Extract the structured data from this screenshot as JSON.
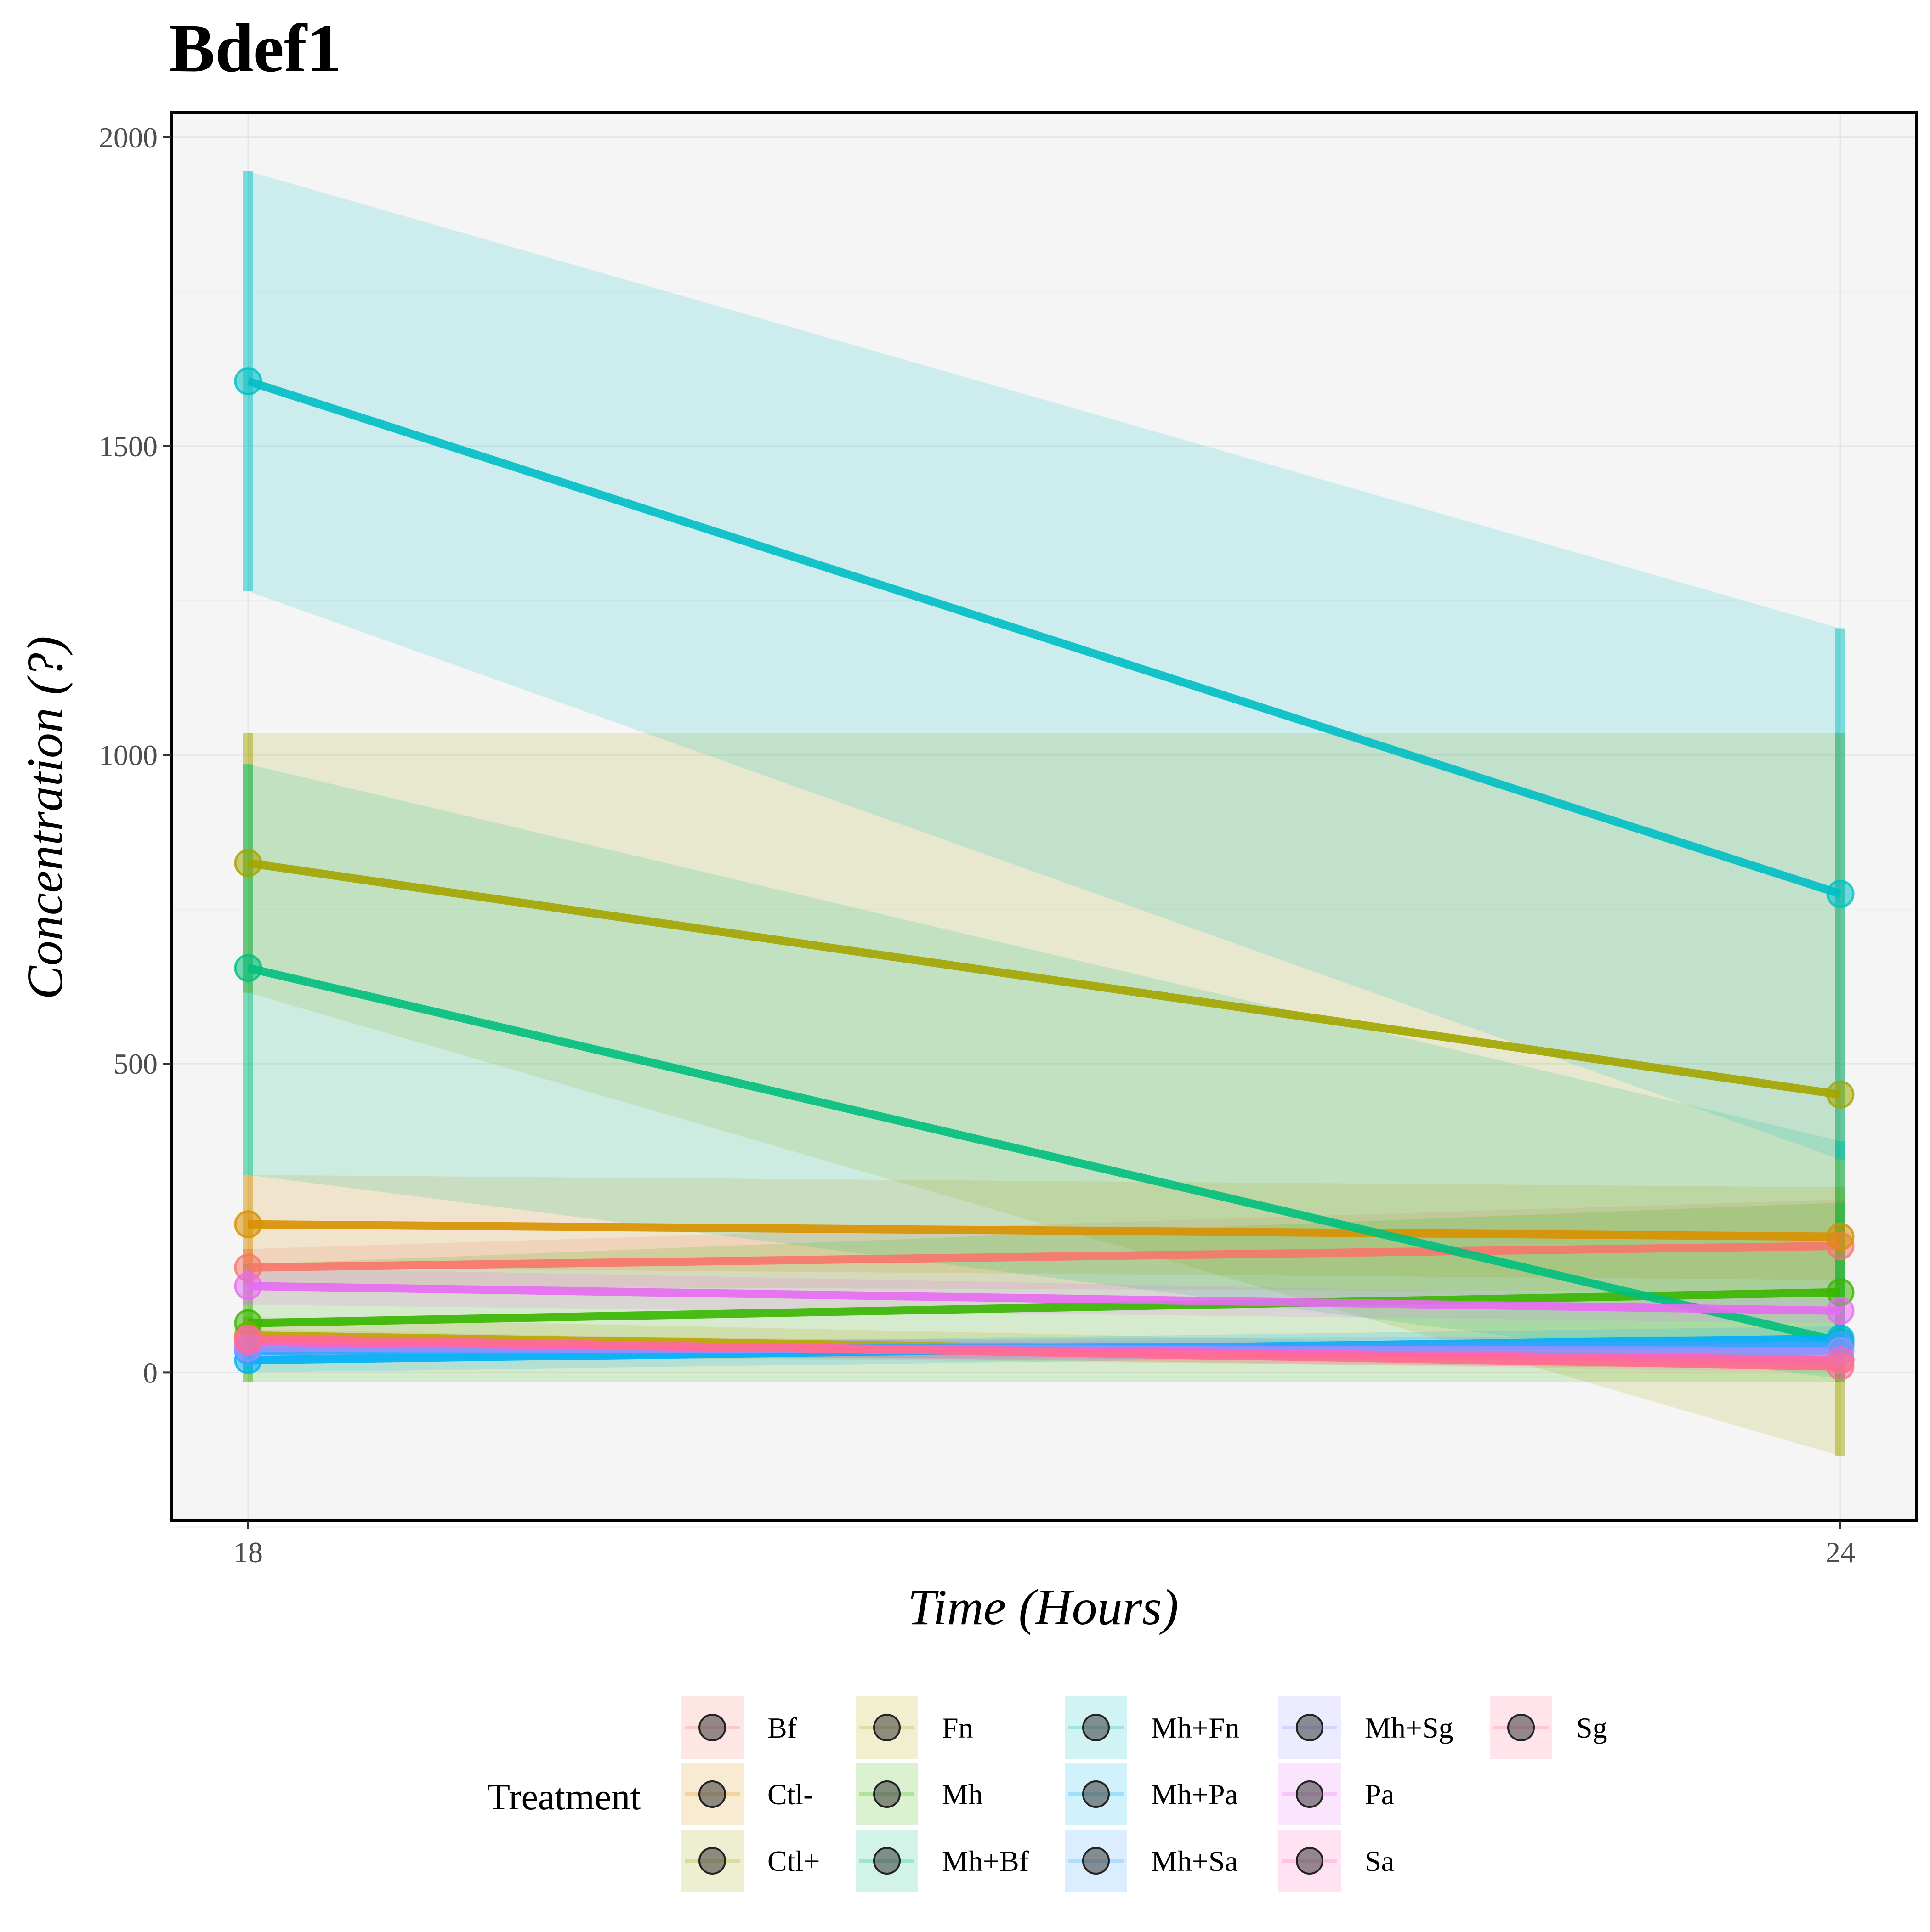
{
  "chart_data": {
    "type": "line",
    "title": "Bdef1",
    "xlabel": "Time (Hours)",
    "ylabel": "Concentration (?)",
    "x": [
      18,
      24
    ],
    "x_ticks": [
      "18",
      "24"
    ],
    "y_ticks": [
      "0",
      "500",
      "1000",
      "1500",
      "2000"
    ],
    "y_tick_values": [
      0,
      500,
      1000,
      1500,
      2000
    ],
    "ylim": [
      -240,
      2040
    ],
    "grid": true,
    "legend": {
      "title": "Treatment",
      "position": "bottom"
    },
    "series": [
      {
        "name": "Bf",
        "color": "#F8766D",
        "values": [
          170,
          205
        ],
        "lower": [
          140,
          130
        ],
        "upper": [
          200,
          280
        ]
      },
      {
        "name": "Ctl-",
        "color": "#D89000",
        "values": [
          240,
          220
        ],
        "lower": [
          170,
          150
        ],
        "upper": [
          320,
          300
        ]
      },
      {
        "name": "Ctl+",
        "color": "#A3A500",
        "values": [
          825,
          450
        ],
        "lower": [
          615,
          -135
        ],
        "upper": [
          1035,
          1035
        ]
      },
      {
        "name": "Fn",
        "color": "#B9A800",
        "values": [
          60,
          20
        ],
        "lower": [
          30,
          5
        ],
        "upper": [
          90,
          35
        ]
      },
      {
        "name": "Mh",
        "color": "#39B600",
        "values": [
          80,
          130
        ],
        "lower": [
          -15,
          -15
        ],
        "upper": [
          175,
          275
        ]
      },
      {
        "name": "Mh+Bf",
        "color": "#00BF7D",
        "values": [
          655,
          50
        ],
        "lower": [
          320,
          -10
        ],
        "upper": [
          985,
          375
        ]
      },
      {
        "name": "Mh+Fn",
        "color": "#00BFC4",
        "values": [
          1605,
          775
        ],
        "lower": [
          1265,
          345
        ],
        "upper": [
          1945,
          1205
        ]
      },
      {
        "name": "Mh+Pa",
        "color": "#00B0F6",
        "values": [
          20,
          55
        ],
        "lower": [
          0,
          35
        ],
        "upper": [
          40,
          75
        ]
      },
      {
        "name": "Mh+Sa",
        "color": "#35A2FF",
        "values": [
          35,
          45
        ],
        "lower": [
          20,
          30
        ],
        "upper": [
          50,
          60
        ]
      },
      {
        "name": "Mh+Sg",
        "color": "#9590FF",
        "values": [
          40,
          35
        ],
        "lower": [
          25,
          20
        ],
        "upper": [
          55,
          50
        ]
      },
      {
        "name": "Pa",
        "color": "#E76BF3",
        "values": [
          140,
          100
        ],
        "lower": [
          110,
          80
        ],
        "upper": [
          170,
          120
        ]
      },
      {
        "name": "Sa",
        "color": "#FF62BC",
        "values": [
          50,
          20
        ],
        "lower": [
          35,
          5
        ],
        "upper": [
          65,
          35
        ]
      },
      {
        "name": "Sg",
        "color": "#FF6C91",
        "values": [
          55,
          10
        ],
        "lower": [
          40,
          0
        ],
        "upper": [
          70,
          20
        ]
      }
    ]
  }
}
